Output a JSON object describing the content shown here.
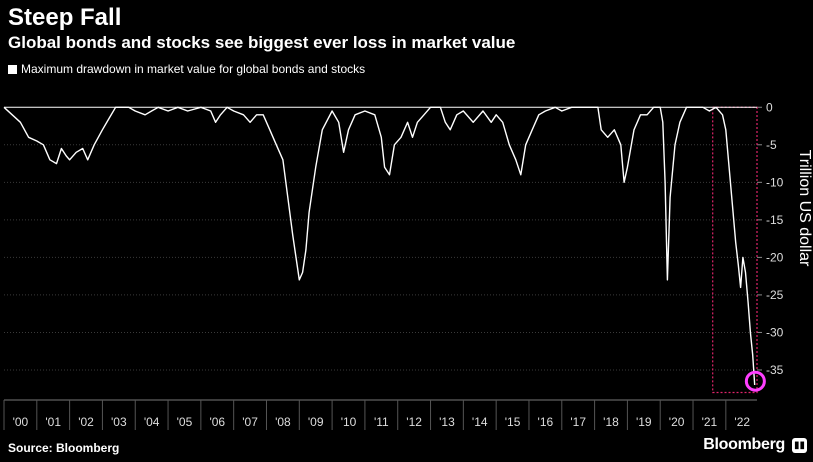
{
  "chart_data": {
    "type": "line",
    "title": "Steep Fall",
    "subtitle": "Global bonds and stocks see biggest ever loss in market value",
    "legend": "Maximum drawdown in market value for global bonds and stocks",
    "ylabel": "Trillion US dollar",
    "xlabel": "",
    "ylim": [
      -39,
      1.5
    ],
    "xlim": [
      2000.0,
      2022.95
    ],
    "yticks": [
      0,
      -5,
      -10,
      -15,
      -20,
      -25,
      -30,
      -35
    ],
    "ytick_labels": [
      "0",
      "-5",
      "-10",
      "-15",
      "-20",
      "-25",
      "-30",
      "-35"
    ],
    "xtick_labels": [
      "'00",
      "'01",
      "'02",
      "'03",
      "'04",
      "'05",
      "'06",
      "'07",
      "'08",
      "'09",
      "'10",
      "'11",
      "'12",
      "'13",
      "'14",
      "'15",
      "'16",
      "'17",
      "'18",
      "'19",
      "'20",
      "'21",
      "'22"
    ],
    "series": [
      {
        "name": "Maximum drawdown in market value for global bonds and stocks",
        "x": [
          2000.0,
          2000.25,
          2000.5,
          2000.75,
          2001.0,
          2001.2,
          2001.4,
          2001.6,
          2001.75,
          2001.9,
          2002.0,
          2002.2,
          2002.4,
          2002.55,
          2002.75,
          2003.0,
          2003.2,
          2003.4,
          2003.6,
          2003.8,
          2004.0,
          2004.3,
          2004.5,
          2004.7,
          2005.0,
          2005.3,
          2005.6,
          2006.0,
          2006.3,
          2006.45,
          2006.6,
          2006.8,
          2007.0,
          2007.3,
          2007.5,
          2007.7,
          2007.9,
          2008.1,
          2008.3,
          2008.5,
          2008.65,
          2008.8,
          2008.9,
          2009.0,
          2009.1,
          2009.2,
          2009.3,
          2009.5,
          2009.7,
          2010.0,
          2010.2,
          2010.35,
          2010.5,
          2010.7,
          2011.0,
          2011.3,
          2011.5,
          2011.6,
          2011.75,
          2011.9,
          2012.1,
          2012.3,
          2012.45,
          2012.6,
          2012.8,
          2013.0,
          2013.3,
          2013.45,
          2013.6,
          2013.8,
          2014.0,
          2014.3,
          2014.6,
          2014.85,
          2015.0,
          2015.2,
          2015.4,
          2015.6,
          2015.75,
          2015.9,
          2016.1,
          2016.3,
          2016.5,
          2016.8,
          2017.0,
          2017.3,
          2017.6,
          2017.9,
          2018.1,
          2018.2,
          2018.4,
          2018.6,
          2018.8,
          2018.9,
          2019.0,
          2019.2,
          2019.4,
          2019.6,
          2019.8,
          2020.0,
          2020.08,
          2020.15,
          2020.22,
          2020.3,
          2020.45,
          2020.6,
          2020.8,
          2021.0,
          2021.3,
          2021.5,
          2021.7,
          2021.9,
          2022.0,
          2022.1,
          2022.2,
          2022.3,
          2022.38,
          2022.45,
          2022.52,
          2022.6,
          2022.68,
          2022.75,
          2022.82,
          2022.88
        ],
        "values": [
          0,
          -1.0,
          -2.0,
          -4.0,
          -4.5,
          -5.0,
          -7.0,
          -7.5,
          -5.5,
          -6.5,
          -7.0,
          -6.0,
          -5.5,
          -7.0,
          -5.0,
          -3.0,
          -1.5,
          0,
          0,
          0,
          -0.5,
          -1.0,
          -0.5,
          0,
          -0.5,
          0,
          -0.5,
          0,
          -0.5,
          -2.0,
          -1.0,
          0,
          -0.5,
          -1.0,
          -2.0,
          -1.0,
          -1.0,
          -3.0,
          -5.0,
          -7.0,
          -12.0,
          -17.0,
          -20.0,
          -23.0,
          -22.0,
          -19.0,
          -14.0,
          -8.0,
          -3.0,
          -0.5,
          -2.0,
          -6.0,
          -3.0,
          -1.0,
          -0.5,
          -1.0,
          -4.0,
          -8.0,
          -9.0,
          -5.0,
          -4.0,
          -2.0,
          -4.0,
          -2.0,
          -1.0,
          0,
          0,
          -2.0,
          -3.0,
          -1.0,
          -0.5,
          -2.0,
          -0.5,
          -2.0,
          -1.0,
          -2.0,
          -5.0,
          -7.0,
          -9.0,
          -5.0,
          -3.0,
          -1.0,
          -0.5,
          0,
          -0.5,
          0,
          0,
          0,
          0,
          -3.0,
          -4.0,
          -3.0,
          -5.0,
          -10.0,
          -8.0,
          -3.0,
          -1.0,
          -1.0,
          0,
          0,
          -2.0,
          -10.0,
          -23.0,
          -12.0,
          -5.0,
          -2.0,
          0,
          0,
          0,
          -0.5,
          0,
          -1.0,
          -3.0,
          -8.0,
          -13.0,
          -18.0,
          -21.0,
          -24.0,
          -20.0,
          -22.0,
          -26.0,
          -30.0,
          -33.0,
          -37.0
        ]
      }
    ],
    "annotation": {
      "box_x": [
        2021.6,
        2022.95
      ],
      "box_y": [
        0,
        -38
      ],
      "circle_x": 2022.9,
      "circle_y": -36.5
    },
    "colors": {
      "background": "#000000",
      "line": "#ffffff",
      "highlight_box": "#e0246a",
      "highlight_circle": "#ff3fff"
    }
  },
  "source": "Source: Bloomberg",
  "brand": "Bloomberg"
}
